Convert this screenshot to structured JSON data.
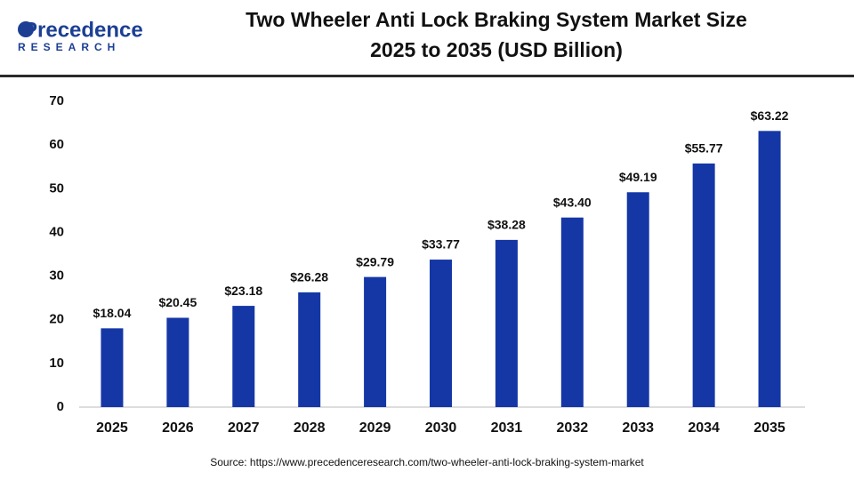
{
  "logo": {
    "name": "Precedence",
    "tagline": "RESEARCH"
  },
  "chart_data": {
    "type": "bar",
    "title": "Two Wheeler Anti Lock Braking System Market Size",
    "subtitle": "2025 to 2035 (USD Billion)",
    "categories": [
      "2025",
      "2026",
      "2027",
      "2028",
      "2029",
      "2030",
      "2031",
      "2032",
      "2033",
      "2034",
      "2035"
    ],
    "values": [
      18.04,
      20.45,
      23.18,
      26.28,
      29.79,
      33.77,
      38.28,
      43.4,
      49.19,
      55.77,
      63.22
    ],
    "value_labels": [
      "$18.04",
      "$20.45",
      "$23.18",
      "$26.28",
      "$29.79",
      "$33.77",
      "$38.28",
      "$43.40",
      "$49.19",
      "$55.77",
      "$63.22"
    ],
    "color": "#1537a6",
    "ylim": [
      0,
      70
    ],
    "yticks": [
      0,
      10,
      20,
      30,
      40,
      50,
      60,
      70
    ],
    "grid": false,
    "source": "Source: https://www.precedenceresearch.com/two-wheeler-anti-lock-braking-system-market"
  }
}
